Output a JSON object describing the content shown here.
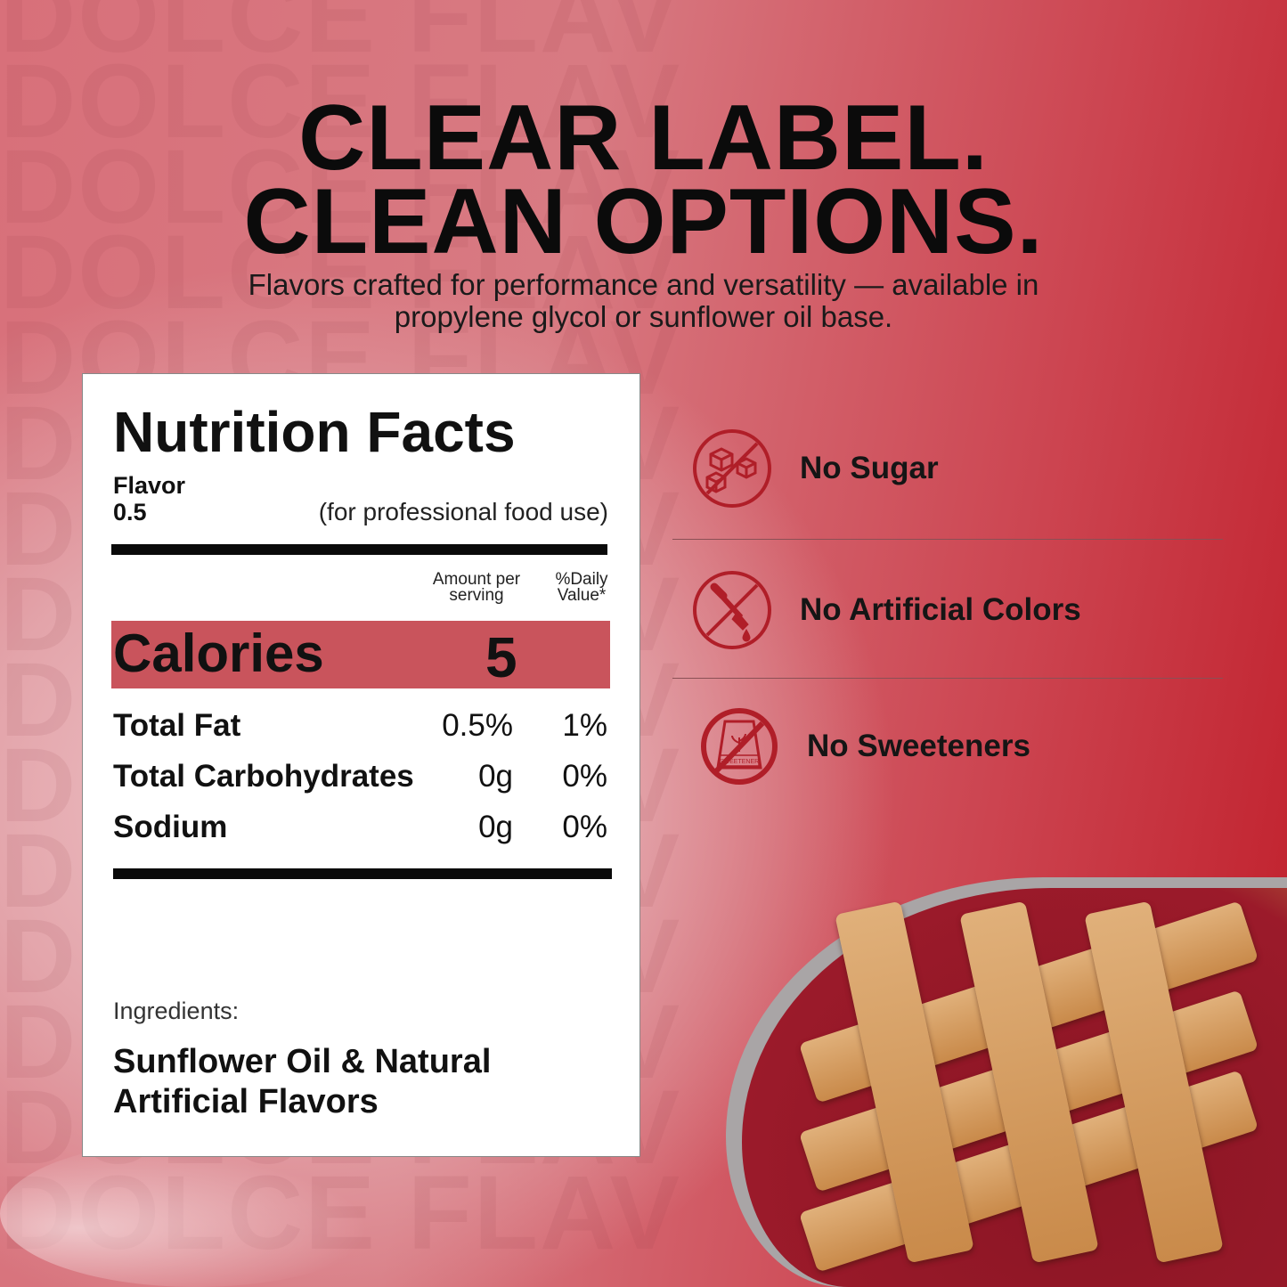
{
  "watermark": "DOLCE FLAV",
  "headline": {
    "line1": "CLEAR LABEL.",
    "line2": "CLEAN OPTIONS."
  },
  "subtitle": "Flavors crafted for performance and versatility — available in propylene glycol or sunflower oil base.",
  "nutrition": {
    "title": "Nutrition Facts",
    "flavor_label": "Flavor",
    "flavor_value": "0.5",
    "use_note": "(for professional food use)",
    "col_amount": "Amount per serving",
    "col_daily": "%Daily Value*",
    "calories_label": "Calories",
    "calories_value": "5",
    "rows": [
      {
        "name": "Total Fat",
        "amount": "0.5%",
        "daily": "1%"
      },
      {
        "name": "Total Carbohydrates",
        "amount": "0g",
        "daily": "0%"
      },
      {
        "name": "Sodium",
        "amount": "0g",
        "daily": "0%"
      }
    ],
    "ingredients_label": "Ingredients:",
    "ingredients": "Sunflower Oil & Natural Artificial Flavors"
  },
  "features": [
    {
      "label": "No Sugar",
      "icon": "no-sugar-cubes-icon"
    },
    {
      "label": "No Artificial Colors",
      "icon": "no-dropper-icon"
    },
    {
      "label": "No Sweeteners",
      "icon": "no-sweetener-icon",
      "icon_text": "SWEETENER"
    }
  ],
  "colors": {
    "accent": "#c9545c",
    "icon": "#b01e28"
  }
}
